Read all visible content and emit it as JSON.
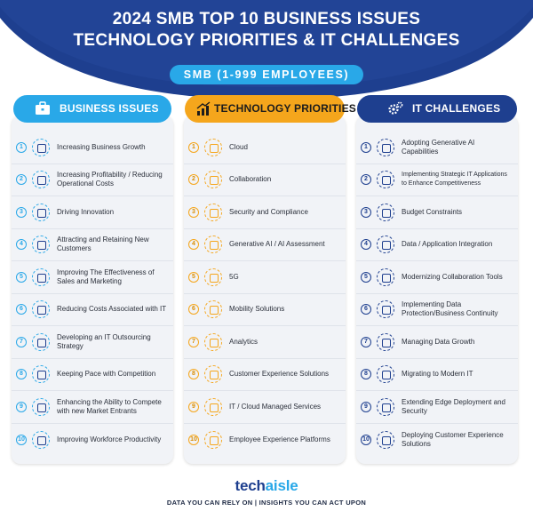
{
  "title_line1": "2024 SMB TOP 10 BUSINESS ISSUES",
  "title_line2": "TECHNOLOGY PRIORITIES & IT CHALLENGES",
  "segment": "SMB (1-999 EMPLOYEES)",
  "colors": {
    "navy": "#1e3f8f",
    "sky": "#29a8e8",
    "orange": "#f5a61c"
  },
  "columns": [
    {
      "heading": "BUSINESS ISSUES",
      "icon": "briefcase-icon",
      "items": [
        {
          "n": "1",
          "text": "Increasing Business Growth"
        },
        {
          "n": "2",
          "text": "Increasing Profitability / Reducing Operational Costs"
        },
        {
          "n": "3",
          "text": "Driving Innovation"
        },
        {
          "n": "4",
          "text": "Attracting and Retaining New Customers"
        },
        {
          "n": "5",
          "text": "Improving The Effectiveness of Sales and Marketing"
        },
        {
          "n": "6",
          "text": "Reducing Costs Associated with IT"
        },
        {
          "n": "7",
          "text": "Developing an IT Outsourcing Strategy"
        },
        {
          "n": "8",
          "text": "Keeping Pace with Competition"
        },
        {
          "n": "9",
          "text": "Enhancing the Ability to Compete with new Market Entrants"
        },
        {
          "n": "10",
          "text": "Improving Workforce Productivity"
        }
      ]
    },
    {
      "heading": "TECHNOLOGY PRIORITIES",
      "icon": "growth-chart-icon",
      "items": [
        {
          "n": "1",
          "text": "Cloud"
        },
        {
          "n": "2",
          "text": "Collaboration"
        },
        {
          "n": "3",
          "text": "Security and Compliance"
        },
        {
          "n": "4",
          "text": "Generative AI / AI Assessment"
        },
        {
          "n": "5",
          "text": "5G"
        },
        {
          "n": "6",
          "text": "Mobility Solutions"
        },
        {
          "n": "7",
          "text": "Analytics"
        },
        {
          "n": "8",
          "text": "Customer Experience Solutions"
        },
        {
          "n": "9",
          "text": "IT / Cloud Managed Services"
        },
        {
          "n": "10",
          "text": "Employee Experience Platforms"
        }
      ]
    },
    {
      "heading": "IT CHALLENGES",
      "icon": "gears-icon",
      "items": [
        {
          "n": "1",
          "text": "Adopting Generative AI Capabilities"
        },
        {
          "n": "2",
          "text": "Implementing Strategic IT Applications to Enhance Competitiveness"
        },
        {
          "n": "3",
          "text": "Budget Constraints"
        },
        {
          "n": "4",
          "text": "Data / Application Integration"
        },
        {
          "n": "5",
          "text": "Modernizing Collaboration Tools"
        },
        {
          "n": "6",
          "text": "Implementing Data Protection/Business Continuity"
        },
        {
          "n": "7",
          "text": "Managing Data Growth"
        },
        {
          "n": "8",
          "text": "Migrating to Modern IT"
        },
        {
          "n": "9",
          "text": "Extending Edge Deployment and Security"
        },
        {
          "n": "10",
          "text": "Deploying Customer Experience Solutions"
        }
      ]
    }
  ],
  "brand_part1": "tech",
  "brand_part2": "aisle",
  "tagline": "DATA YOU CAN RELY ON | INSIGHTS YOU CAN ACT UPON"
}
